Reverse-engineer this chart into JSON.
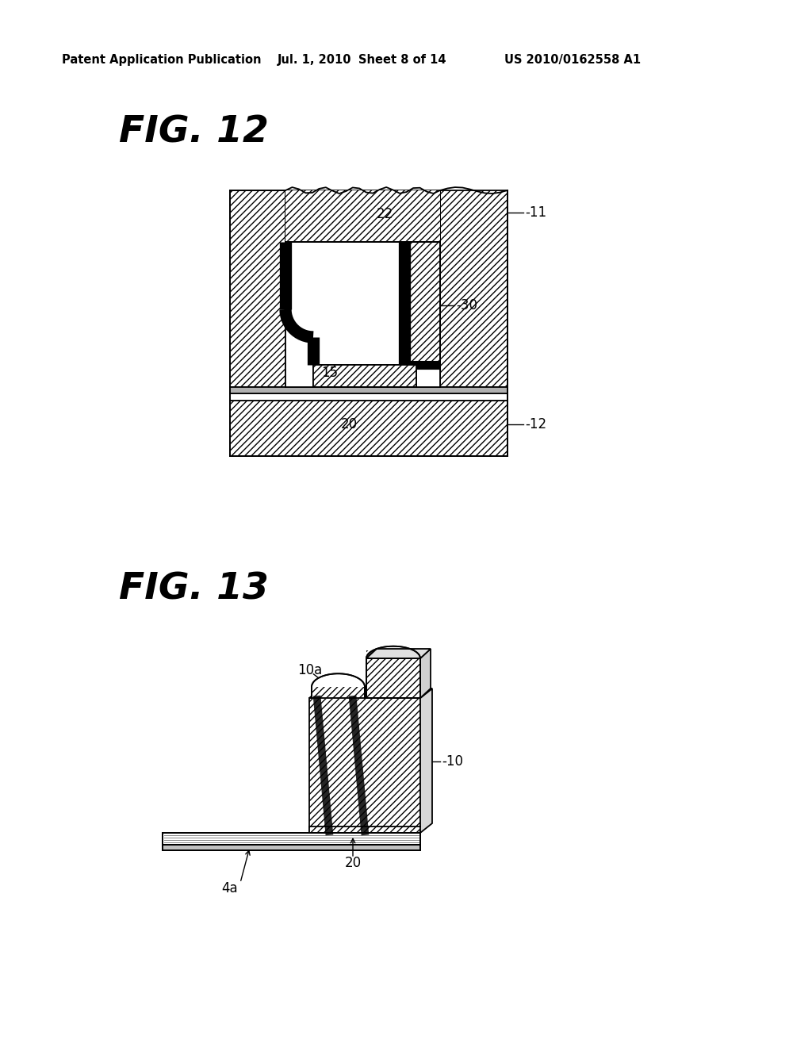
{
  "bg_color": "#ffffff",
  "header_text": "Patent Application Publication",
  "header_date": "Jul. 1, 2010",
  "header_sheet": "Sheet 8 of 14",
  "header_patent": "US 2010/0162558 A1",
  "fig12_label": "FIG. 12",
  "fig13_label": "FIG. 13",
  "line_color": "#000000"
}
